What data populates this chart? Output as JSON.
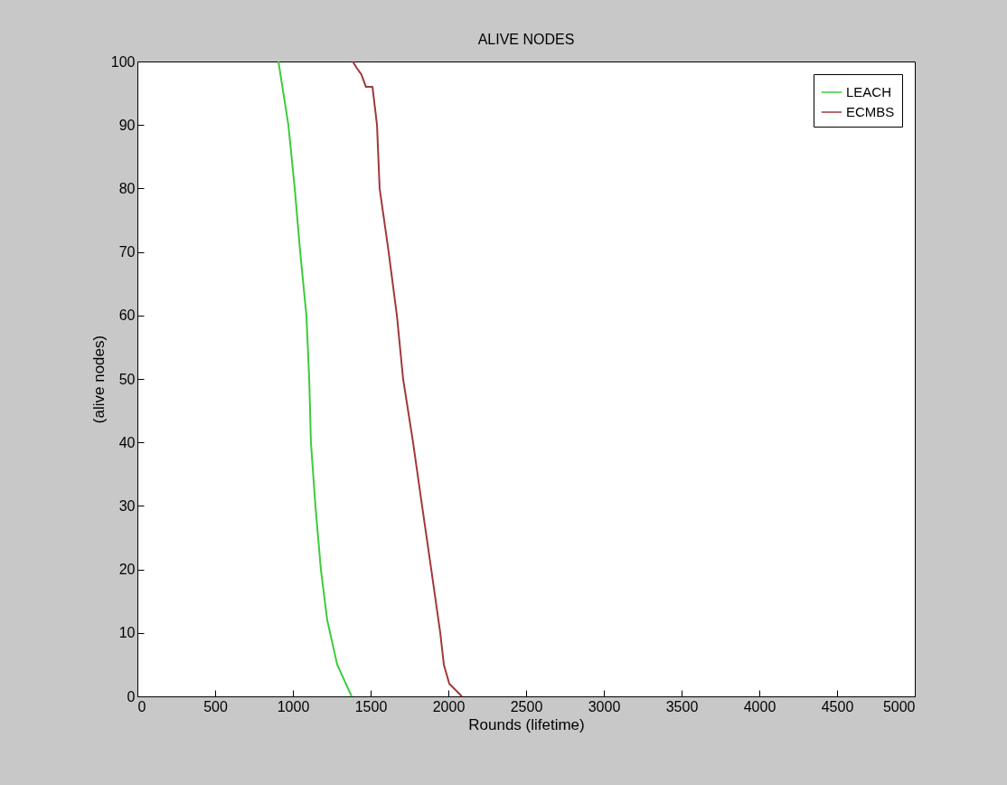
{
  "chart_data": {
    "type": "line",
    "title": "ALIVE NODES",
    "xlabel": "Rounds (lifetime)",
    "ylabel": "(alive nodes)",
    "xlim": [
      0,
      5000
    ],
    "xticks": [
      0,
      500,
      1000,
      1500,
      2000,
      2500,
      3000,
      3500,
      4000,
      4500,
      5000
    ],
    "ylim": [
      0,
      100
    ],
    "yticks": [
      0,
      10,
      20,
      30,
      40,
      50,
      60,
      70,
      80,
      90,
      100
    ],
    "grid": false,
    "legend": "top right",
    "marker": "none",
    "line_style": "solid",
    "series": [
      {
        "name": "LEACH",
        "color": "#3ccc3c",
        "x": [
          907,
          971,
          1012,
          1047,
          1087,
          1105,
          1116,
          1145,
          1180,
          1221,
          1285,
          1378
        ],
        "values": [
          100,
          90,
          80,
          70,
          60,
          50,
          40,
          30,
          20,
          12,
          5,
          0
        ]
      },
      {
        "name": "ECMBS",
        "color": "#a0393c",
        "x": [
          1385,
          1410,
          1440,
          1470,
          1512,
          1541,
          1558,
          1616,
          1669,
          1709,
          1773,
          1831,
          1890,
          1948,
          1971,
          2006,
          2087
        ],
        "values": [
          100,
          99,
          98,
          96,
          96,
          90,
          80,
          70,
          60,
          50,
          40,
          30,
          20,
          10,
          5,
          2,
          0
        ]
      }
    ]
  }
}
